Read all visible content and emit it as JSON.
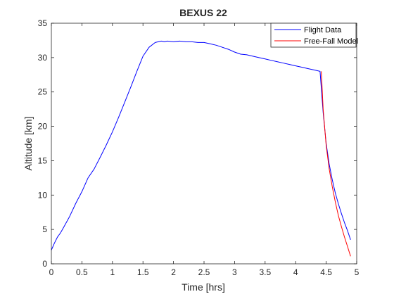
{
  "chart_data": {
    "type": "line",
    "title": "BEXUS 22",
    "xlabel": "Time [hrs]",
    "ylabel": "Altitude [km]",
    "xlim": [
      0,
      5
    ],
    "ylim": [
      0,
      35
    ],
    "xticks": [
      0,
      0.5,
      1,
      1.5,
      2,
      2.5,
      3,
      3.5,
      4,
      4.5,
      5
    ],
    "xtick_labels": [
      "0",
      "0.5",
      "1",
      "1.5",
      "2",
      "2.5",
      "3",
      "3.5",
      "4",
      "4.5",
      "5"
    ],
    "yticks": [
      0,
      5,
      10,
      15,
      20,
      25,
      30,
      35
    ],
    "ytick_labels": [
      "0",
      "5",
      "10",
      "15",
      "20",
      "25",
      "30",
      "35"
    ],
    "grid": false,
    "legend_position": "top-right",
    "series": [
      {
        "name": "Flight Data",
        "color": "#0000ff",
        "x": [
          0,
          0.05,
          0.1,
          0.15,
          0.2,
          0.3,
          0.4,
          0.5,
          0.6,
          0.7,
          0.8,
          0.9,
          1.0,
          1.1,
          1.2,
          1.3,
          1.4,
          1.5,
          1.6,
          1.7,
          1.75,
          1.8,
          1.85,
          1.9,
          2.0,
          2.1,
          2.2,
          2.3,
          2.4,
          2.5,
          2.6,
          2.7,
          2.8,
          2.9,
          3.0,
          3.1,
          3.2,
          3.3,
          3.4,
          3.5,
          3.6,
          3.7,
          3.8,
          3.9,
          4.0,
          4.1,
          4.2,
          4.3,
          4.35,
          4.4,
          4.42,
          4.45,
          4.5,
          4.55,
          4.6,
          4.65,
          4.7,
          4.75,
          4.8,
          4.85,
          4.9
        ],
        "y": [
          2.0,
          3.0,
          3.9,
          4.5,
          5.3,
          6.9,
          8.8,
          10.5,
          12.5,
          13.8,
          15.5,
          17.3,
          19.2,
          21.3,
          23.5,
          25.7,
          28.0,
          30.2,
          31.5,
          32.2,
          32.3,
          32.4,
          32.3,
          32.4,
          32.3,
          32.4,
          32.3,
          32.3,
          32.2,
          32.2,
          32.0,
          31.8,
          31.5,
          31.2,
          30.8,
          30.5,
          30.4,
          30.2,
          30.0,
          29.8,
          29.6,
          29.4,
          29.2,
          29.0,
          28.8,
          28.6,
          28.4,
          28.2,
          28.1,
          28.0,
          25.5,
          22.0,
          17.5,
          14.5,
          12.2,
          10.3,
          8.7,
          7.3,
          6.0,
          4.8,
          3.5
        ]
      },
      {
        "name": "Free-Fall Model",
        "color": "#ff0000",
        "x": [
          4.42,
          4.45,
          4.5,
          4.55,
          4.6,
          4.65,
          4.7,
          4.75,
          4.8,
          4.85,
          4.9
        ],
        "y": [
          28.0,
          22.5,
          17.2,
          13.8,
          11.2,
          9.0,
          7.0,
          5.4,
          3.9,
          2.5,
          1.1
        ]
      }
    ]
  }
}
